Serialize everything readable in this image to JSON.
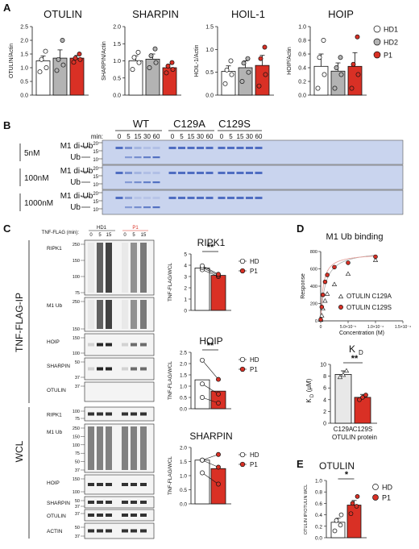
{
  "panels": {
    "A": {
      "letter": "A",
      "legend": [
        "HD1",
        "HD2",
        "P1"
      ],
      "charts": [
        {
          "title": "OTULIN",
          "ylabel": "OTULIN/Actin",
          "ylim": [
            0,
            2.5
          ],
          "ticks": [
            "0.0",
            "0.5",
            "1.0",
            "1.5",
            "2.0",
            "2.5"
          ],
          "means": [
            1.25,
            1.35,
            1.35
          ],
          "errors": [
            0.18,
            0.3,
            0.1
          ],
          "points": [
            [
              0.85,
              1.0,
              1.3,
              1.6
            ],
            [
              0.9,
              1.1,
              1.3,
              2.0
            ],
            [
              1.2,
              1.3,
              1.35,
              1.5
            ]
          ]
        },
        {
          "title": "SHARPIN",
          "ylabel": "SHARPIN/Actin",
          "ylim": [
            0,
            2.0
          ],
          "ticks": [
            "0.0",
            "0.5",
            "1.0",
            "1.5",
            "2.0"
          ],
          "means": [
            1.0,
            1.05,
            0.8
          ],
          "errors": [
            0.15,
            0.15,
            0.1
          ],
          "points": [
            [
              0.75,
              0.95,
              1.1,
              1.25
            ],
            [
              0.8,
              0.95,
              1.15,
              1.35
            ],
            [
              0.65,
              0.75,
              0.85,
              0.95
            ]
          ]
        },
        {
          "title": "HOIL-1",
          "ylabel": "HOIL-1/Actin",
          "ylim": [
            0,
            1.5
          ],
          "ticks": [
            "0.0",
            "0.5",
            "1.0",
            "1.5"
          ],
          "means": [
            0.52,
            0.6,
            0.65
          ],
          "errors": [
            0.12,
            0.15,
            0.22
          ],
          "points": [
            [
              0.25,
              0.45,
              0.55,
              0.75
            ],
            [
              0.3,
              0.5,
              0.7,
              0.8
            ],
            [
              0.2,
              0.45,
              0.8,
              1.05
            ]
          ]
        },
        {
          "title": "HOIP",
          "ylabel": "HOIP/Actin",
          "ylim": [
            0,
            1.0
          ],
          "ticks": [
            "0.0",
            "0.2",
            "0.4",
            "0.6",
            "0.8",
            "1.0"
          ],
          "means": [
            0.42,
            0.35,
            0.42
          ],
          "errors": [
            0.18,
            0.12,
            0.2
          ],
          "points": [
            [
              0.1,
              0.3,
              0.55,
              0.8
            ],
            [
              0.1,
              0.3,
              0.4,
              0.55
            ],
            [
              0.1,
              0.3,
              0.45,
              0.85
            ]
          ]
        }
      ]
    },
    "B": {
      "letter": "B",
      "groups": [
        "WT",
        "C129A",
        "C129S"
      ],
      "min_label": "min:",
      "times": [
        "0",
        "5",
        "15",
        "30",
        "60"
      ],
      "rows": [
        {
          "conc": "5nM",
          "diub": "M1 di-Ub",
          "ub": "Ub"
        },
        {
          "conc": "100nM",
          "diub": "M1 di-Ub",
          "ub": "Ub"
        },
        {
          "conc": "1000nM",
          "diub": "M1 di-Ub",
          "ub": "Ub"
        }
      ],
      "mw_top": [
        "20",
        "15",
        "10"
      ],
      "mw_mid": [
        "20",
        "15",
        "10"
      ],
      "mw_bot": [
        "20",
        "15",
        "10"
      ]
    },
    "C": {
      "letter": "C",
      "tnf_label": "TNF-FLAG (min):",
      "lanes": [
        "HD1",
        "P1"
      ],
      "times": [
        "0",
        "5",
        "15",
        "0",
        "5",
        "15"
      ],
      "ip_label": "TNF-FLAG-IP",
      "wcl_label": "WCL",
      "ip_blots": [
        {
          "name": "RIPK1",
          "mw": [
            "250",
            "150",
            "100",
            "75"
          ]
        },
        {
          "name": "M1 Ub",
          "mw": [
            "250",
            "150"
          ]
        },
        {
          "name": "HOIP",
          "mw": [
            "150",
            "100"
          ]
        },
        {
          "name": "SHARPIN",
          "mw": [
            "50",
            "37"
          ]
        },
        {
          "name": "OTULIN",
          "mw": [
            "37"
          ]
        }
      ],
      "wcl_blots": [
        {
          "name": "RIPK1",
          "mw": [
            "100",
            "75"
          ]
        },
        {
          "name": "M1 Ub",
          "mw": [
            "250",
            "150",
            "100",
            "75",
            "50",
            "37"
          ]
        },
        {
          "name": "HOIP",
          "mw": [
            "150",
            "100"
          ]
        },
        {
          "name": "SHARPIN",
          "mw": [
            "50",
            "37"
          ]
        },
        {
          "name": "OTULIN",
          "mw": [
            "37"
          ]
        },
        {
          "name": "ACTIN",
          "mw": [
            "50",
            "37"
          ]
        }
      ],
      "quant": [
        {
          "title": "RIPK1",
          "ylabel": "TNF-FLAG/WCL",
          "ylim": [
            0,
            5
          ],
          "ticks": [
            "0",
            "1",
            "2",
            "3",
            "4",
            "5"
          ],
          "bars": [
            3.75,
            3.1
          ],
          "hd_points": [
            3.6,
            3.8,
            3.95
          ],
          "p1_points": [
            3.0,
            3.1,
            3.2
          ],
          "sig": "**",
          "legend": [
            "HD",
            "P1"
          ]
        },
        {
          "title": "HOIP",
          "ylabel": "TNF-FLAG/WCL",
          "ylim": [
            0,
            2.5
          ],
          "ticks": [
            "0.0",
            "0.5",
            "1.0",
            "1.5",
            "2.0",
            "2.5"
          ],
          "bars": [
            1.28,
            0.78
          ],
          "hd_points": [
            0.5,
            1.1,
            2.15
          ],
          "p1_points": [
            0.25,
            0.65,
            1.3
          ],
          "sig": "**",
          "legend": [
            "HD",
            "P1"
          ]
        },
        {
          "title": "SHARPIN",
          "ylabel": "TNF-FLAG/WCL",
          "ylim": [
            0,
            2.0
          ],
          "ticks": [
            "0.0",
            "0.5",
            "1.0",
            "1.5",
            "2.0"
          ],
          "bars": [
            1.55,
            1.25
          ],
          "hd_points": [
            1.1,
            1.55,
            1.55
          ],
          "p1_points": [
            0.7,
            1.3,
            1.75
          ],
          "sig": "",
          "legend": [
            "HD",
            "P1"
          ]
        }
      ]
    },
    "D": {
      "letter": "D",
      "binding": {
        "title": "M1 Ub binding",
        "ylabel": "Response",
        "xlabel": "Concentration (M)",
        "yticks": [
          "0",
          "200",
          "400",
          "600",
          "800"
        ],
        "xticks": [
          "0",
          "5.0×10⁻⁵",
          "1.0×10⁻⁴",
          "1.5×10⁻⁴"
        ],
        "legend": [
          "OTULIN C129A",
          "OTULIN C129S"
        ],
        "c129a": [
          [
            0,
            10
          ],
          [
            2e-06,
            60
          ],
          [
            4e-06,
            140
          ],
          [
            8e-06,
            230
          ],
          [
            1.2e-05,
            310
          ],
          [
            2.5e-05,
            420
          ],
          [
            5e-05,
            540
          ],
          [
            0.0001,
            700
          ]
        ],
        "c129s": [
          [
            0,
            15
          ],
          [
            2e-06,
            160
          ],
          [
            4e-06,
            300
          ],
          [
            8e-06,
            450
          ],
          [
            1.2e-05,
            530
          ],
          [
            2.5e-05,
            620
          ],
          [
            5e-05,
            670
          ],
          [
            0.0001,
            740
          ]
        ]
      },
      "kd": {
        "title": "K",
        "title_sub": "D",
        "ylabel": "K",
        "ylabel_sub": "D",
        "ylabel_unit": "(μM)",
        "yticks": [
          "0",
          "2",
          "4",
          "6",
          "8",
          "10"
        ],
        "categories": [
          "C129A",
          "C129S"
        ],
        "xlabel": "OTULIN protein",
        "values": [
          8.3,
          4.4
        ],
        "errors": [
          0.6,
          0.5
        ],
        "points": [
          [
            7.8,
            8.2,
            8.9
          ],
          [
            4.0,
            4.4,
            4.8
          ]
        ],
        "sig": "**"
      }
    },
    "E": {
      "letter": "E",
      "title": "OTULIN",
      "ylabel": "OTULIN IP/OTULIN WCL",
      "ylim": [
        0,
        1.0
      ],
      "yticks": [
        "0.0",
        "0.2",
        "0.4",
        "0.6",
        "0.8",
        "1.0"
      ],
      "means": [
        0.27,
        0.57
      ],
      "errors": [
        0.07,
        0.08
      ],
      "points": [
        [
          0.12,
          0.22,
          0.3,
          0.4
        ],
        [
          0.42,
          0.55,
          0.6,
          0.72
        ]
      ],
      "sig": "*",
      "legend": [
        "HD",
        "P1"
      ]
    }
  },
  "colors": {
    "white_bar": "#ffffff",
    "grey_bar": "#b3b3b3",
    "red": "#d93025",
    "light_grey": "#e8e8e8",
    "gel_blue": "#c9d4ee",
    "band_blue": "#3a5bb8"
  }
}
